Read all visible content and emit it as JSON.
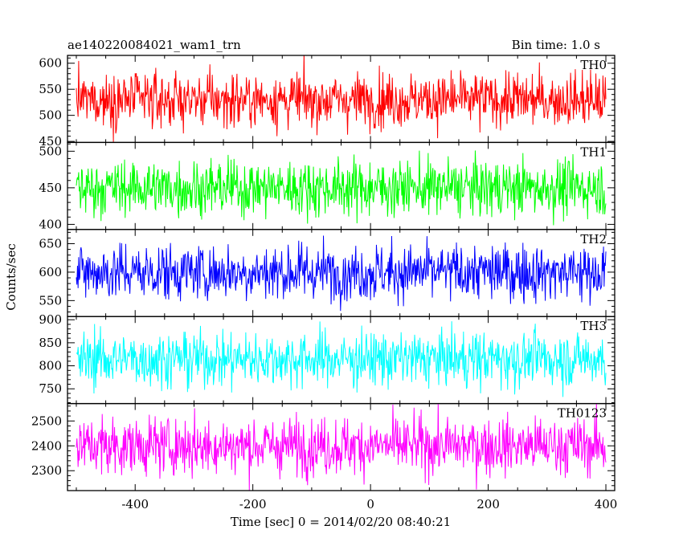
{
  "header": {
    "title": "ae140220084021_wam1_trn",
    "bin_time": "Bin time: 1.0 s"
  },
  "chart_data": {
    "type": "line",
    "xlabel": "Time [sec] 0 = 2014/02/20 08:40:21",
    "ylabel": "Counts/sec",
    "xlim": [
      -515,
      415
    ],
    "x_ticks": [
      -400,
      -200,
      0,
      200,
      400
    ],
    "x_range": [
      -500,
      400
    ],
    "bin": 1.0,
    "panels": [
      {
        "name": "TH0",
        "color": "#ff0000",
        "ylim": [
          448,
          615
        ],
        "yticks": [
          450,
          500,
          550,
          600
        ],
        "mean": 530,
        "spread": 26,
        "minor_step": 10
      },
      {
        "name": "TH1",
        "color": "#00ff00",
        "ylim": [
          393,
          512
        ],
        "yticks": [
          400,
          450,
          500
        ],
        "mean": 450,
        "spread": 19,
        "minor_step": 10
      },
      {
        "name": "TH2",
        "color": "#0000ff",
        "ylim": [
          522,
          675
        ],
        "yticks": [
          550,
          600,
          650
        ],
        "mean": 600,
        "spread": 25,
        "minor_step": 10
      },
      {
        "name": "TH3",
        "color": "#00ffff",
        "ylim": [
          718,
          907
        ],
        "yticks": [
          750,
          800,
          850,
          900
        ],
        "mean": 815,
        "spread": 30,
        "minor_step": 10
      },
      {
        "name": "TH0123",
        "color": "#ff00ff",
        "ylim": [
          2220,
          2570
        ],
        "yticks": [
          2300,
          2400,
          2500
        ],
        "mean": 2400,
        "spread": 58,
        "minor_step": 20
      }
    ]
  }
}
